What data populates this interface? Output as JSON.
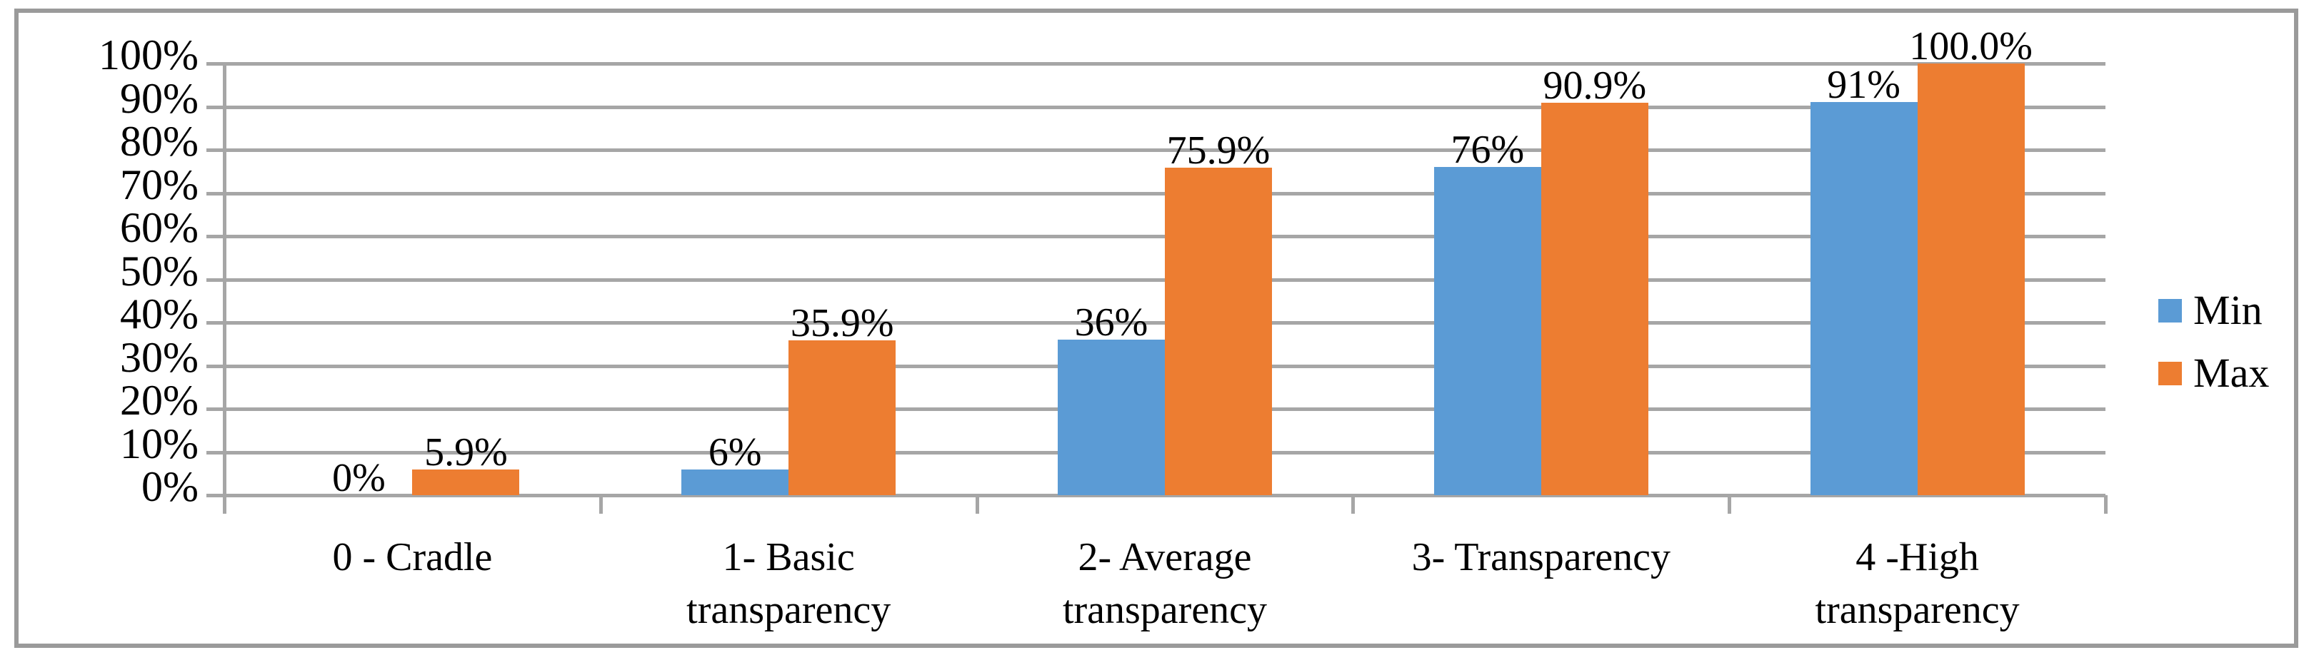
{
  "chart_data": {
    "type": "bar",
    "categories": [
      "0 - Cradle",
      "1- Basic\ntransparency",
      "2- Average\ntransparency",
      "3- Transparency",
      "4 -High\ntransparency"
    ],
    "series": [
      {
        "name": "Min",
        "color": "#5b9bd5",
        "values": [
          0,
          6,
          36,
          76,
          91
        ],
        "labels": [
          "0%",
          "6%",
          "36%",
          "76%",
          "91%"
        ]
      },
      {
        "name": "Max",
        "color": "#ed7d31",
        "values": [
          5.9,
          35.9,
          75.9,
          90.9,
          100.0
        ],
        "labels": [
          "5.9%",
          "35.9%",
          "75.9%",
          "90.9%",
          "100.0%"
        ]
      }
    ],
    "title": "",
    "xlabel": "",
    "ylabel": "",
    "ylim": [
      0,
      100
    ],
    "ytick_step": 10,
    "ytick_labels": [
      "0%",
      "10%",
      "20%",
      "30%",
      "40%",
      "50%",
      "60%",
      "70%",
      "80%",
      "90%",
      "100%"
    ],
    "grid": true,
    "legend_position": "right"
  },
  "legend": {
    "items": [
      {
        "label": "Min",
        "color": "#5b9bd5"
      },
      {
        "label": "Max",
        "color": "#ed7d31"
      }
    ]
  },
  "colors": {
    "gridline": "#a6a6a6",
    "frame": "#9a9a9a",
    "bar_min": "#5b9bd5",
    "bar_max": "#ed7d31",
    "text": "#000000"
  }
}
